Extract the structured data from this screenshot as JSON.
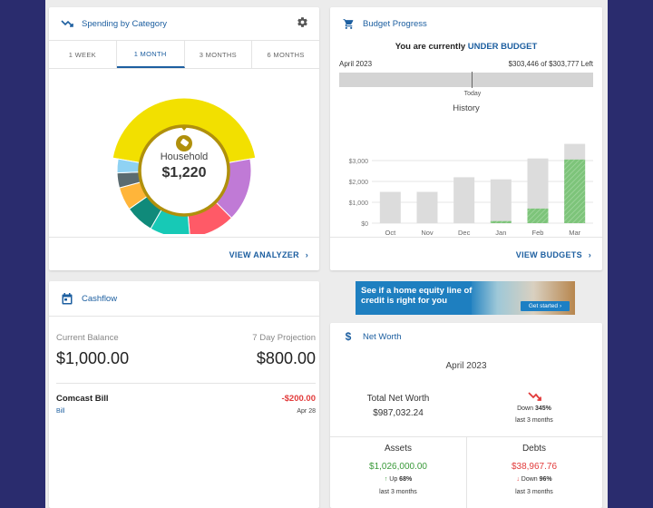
{
  "spending": {
    "title": "Spending by Category",
    "tabs": [
      "1 WEEK",
      "1 MONTH",
      "3 MONTHS",
      "6 MONTHS"
    ],
    "active_tab": "1 MONTH",
    "center_label": "Household",
    "center_value": "$1,220",
    "link": "VIEW ANALYZER",
    "colors": {
      "household": "#f2e000",
      "purple": "#c07ad6",
      "red": "#ff5a67",
      "teal": "#17c9b6",
      "darkteal": "#108a7a",
      "orange": "#ffb53a",
      "slate": "#5b6b70",
      "sky": "#8fd2f3",
      "ring": "#b0900c"
    }
  },
  "budget": {
    "title": "Budget Progress",
    "status_prefix": "You are currently",
    "status": "UNDER BUDGET",
    "month": "April 2023",
    "remaining": "$303,446 of $303,777 Left",
    "today_label": "Today",
    "progress_fraction": 0.52,
    "history_title": "History",
    "link": "VIEW BUDGETS"
  },
  "chart_data": {
    "type": "bar",
    "title": "History",
    "categories": [
      "Oct",
      "Nov",
      "Dec",
      "Jan",
      "Feb",
      "Mar"
    ],
    "yticks": [
      "$0",
      "$1,000",
      "$2,000",
      "$3,000"
    ],
    "ylim": [
      0,
      4000
    ],
    "series": [
      {
        "values": [
          1500,
          1500,
          2200,
          2100,
          3100,
          3800
        ]
      },
      {
        "values": [
          0,
          0,
          0,
          100,
          700,
          3050
        ]
      }
    ],
    "grid": true
  },
  "cashflow": {
    "title": "Cashflow",
    "current_label": "Current Balance",
    "current_value": "$1,000.00",
    "projection_label": "7 Day Projection",
    "projection_value": "$800.00",
    "bill_name": "Comcast Bill",
    "bill_type": "Bill",
    "bill_amount": "-$200.00",
    "bill_date": "Apr 28"
  },
  "ad": {
    "headline": "See if a home equity line of credit is right for you",
    "cta": "Get started"
  },
  "networth": {
    "title": "Net Worth",
    "month": "April 2023",
    "total_label": "Total Net Worth",
    "total_value": "$987,032.24",
    "change_text": "Down",
    "change_pct": "345%",
    "period": "last 3 months",
    "assets_label": "Assets",
    "assets_value": "$1,026,000.00",
    "assets_change_text": "Up",
    "assets_change_pct": "68%",
    "assets_period": "last 3 months",
    "debts_label": "Debts",
    "debts_value": "$38,967.76",
    "debts_change_text": "Down",
    "debts_change_pct": "96%",
    "debts_period": "last 3 months"
  }
}
